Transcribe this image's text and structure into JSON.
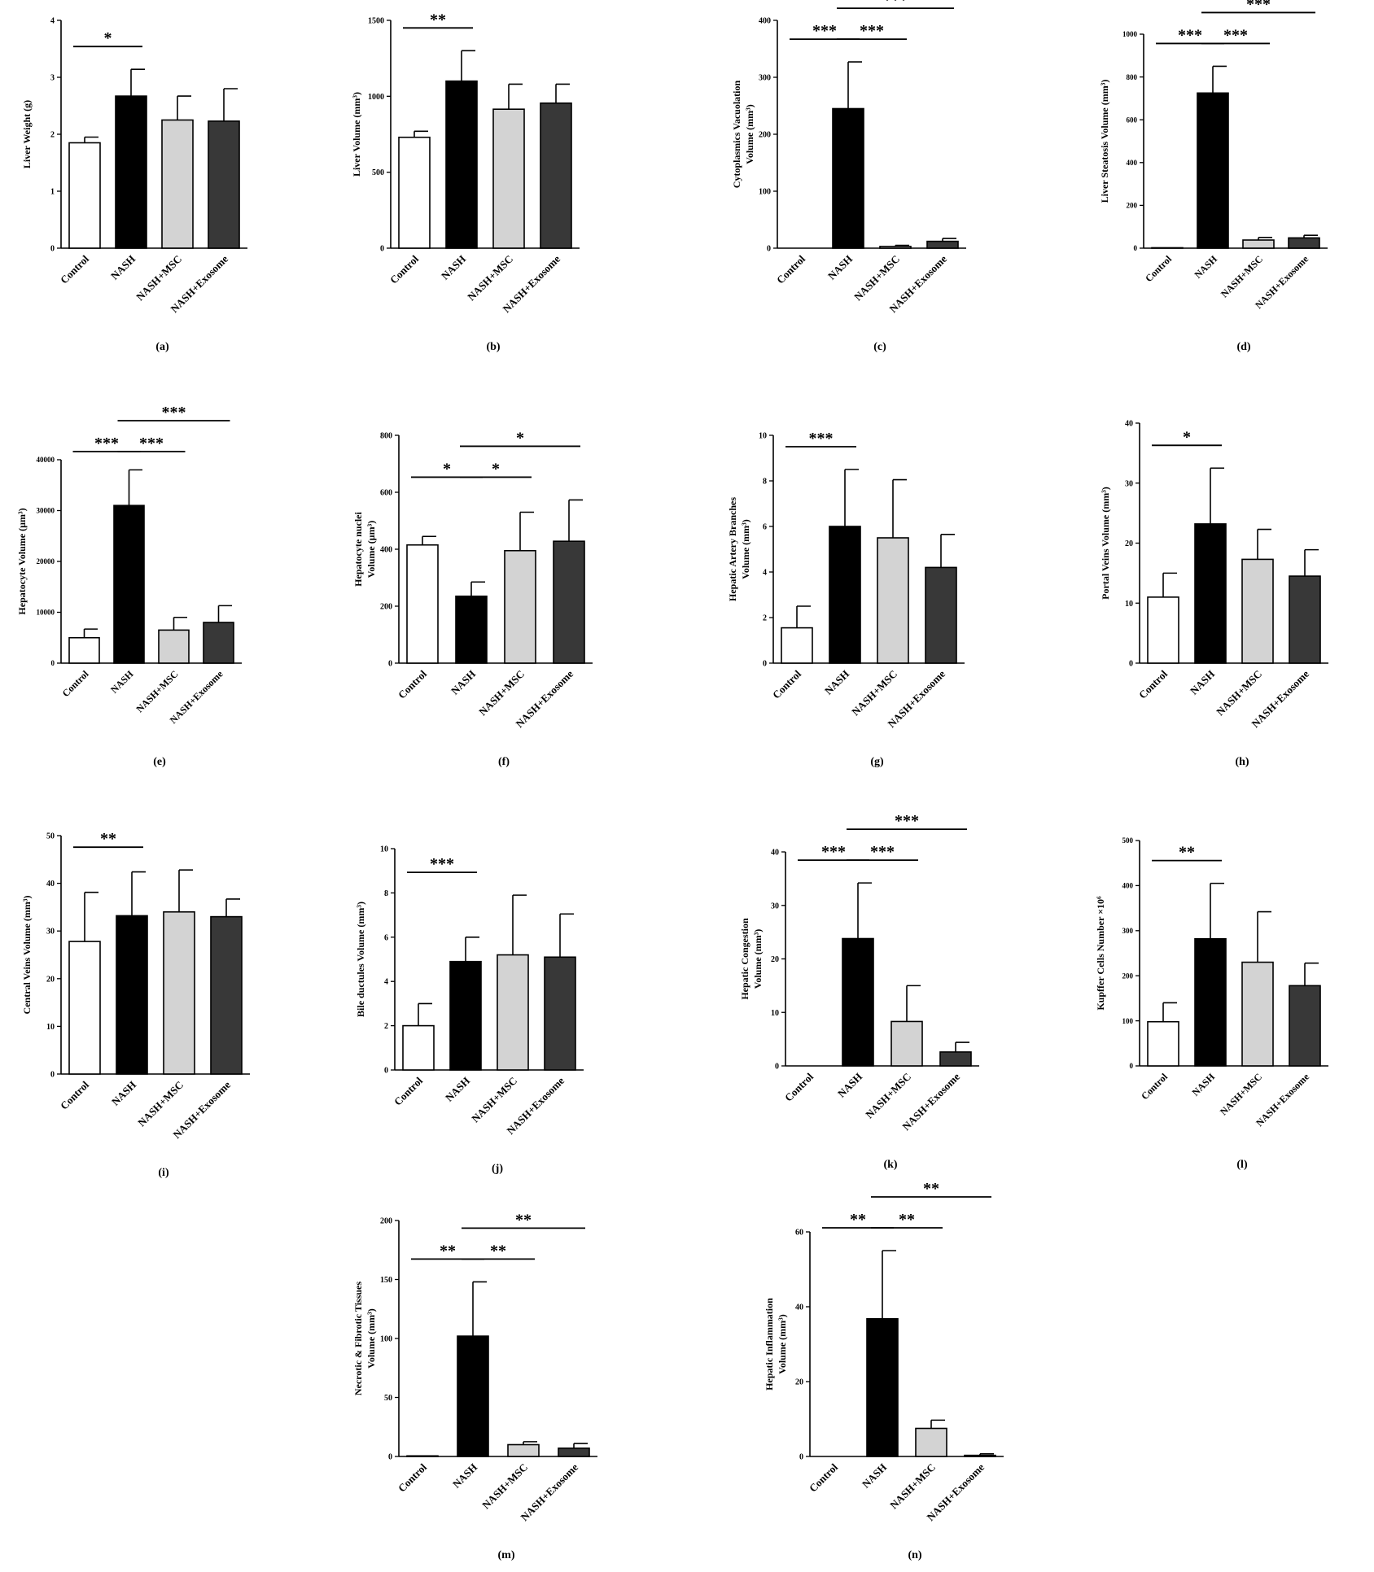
{
  "groups": [
    "Control",
    "NASH",
    "NASH+MSC",
    "NASH+Exosome"
  ],
  "colors": {
    "Control": "#ffffff",
    "NASH": "#000000",
    "NASH+MSC": "#d3d3d3",
    "NASH+Exosome": "#383838"
  },
  "chart_data": [
    {
      "type": "bar",
      "panel": "(a)",
      "ylabel": [
        "Liver Weight (g)"
      ],
      "ylim": [
        0,
        4
      ],
      "yticks": [
        0,
        1,
        2,
        3,
        4
      ],
      "categories": [
        "Control",
        "NASH",
        "NASH+MSC",
        "NASH+Exosome"
      ],
      "values": [
        1.85,
        2.67,
        2.25,
        2.23
      ],
      "errors": [
        0.1,
        0.47,
        0.42,
        0.57
      ],
      "significance": [
        {
          "from": 0,
          "to": 1,
          "label": "*"
        }
      ]
    },
    {
      "type": "bar",
      "panel": "(b)",
      "ylabel": [
        "Liver Volume (mm³)"
      ],
      "ylim": [
        0,
        1500
      ],
      "yticks": [
        0,
        500,
        1000,
        1500
      ],
      "categories": [
        "Control",
        "NASH",
        "NASH+MSC",
        "NASH+Exosome"
      ],
      "values": [
        730,
        1100,
        915,
        955
      ],
      "errors": [
        40,
        200,
        165,
        125
      ],
      "significance": [
        {
          "from": 0,
          "to": 1,
          "label": "**"
        }
      ]
    },
    {
      "type": "bar",
      "panel": "(c)",
      "ylabel": [
        "Cytoplasmics Vacuolation",
        "Volume (mm³)"
      ],
      "ylim": [
        0,
        400
      ],
      "yticks": [
        0,
        100,
        200,
        300,
        400
      ],
      "categories": [
        "Control",
        "NASH",
        "NASH+MSC",
        "NASH+Exosome"
      ],
      "values": [
        0,
        245,
        3,
        12
      ],
      "errors": [
        0,
        82,
        2,
        5
      ],
      "significance": [
        {
          "from": 0,
          "to": 1,
          "label": "***"
        },
        {
          "from": 1,
          "to": 2,
          "label": "***"
        },
        {
          "from": 1,
          "to": 3,
          "label": "***"
        }
      ]
    },
    {
      "type": "bar",
      "panel": "(d)",
      "ylabel": [
        "Liver Steatosis Volume (mm³)"
      ],
      "ylim": [
        0,
        1000
      ],
      "yticks": [
        0,
        200,
        400,
        600,
        800,
        1000
      ],
      "categories": [
        "Control",
        "NASH",
        "NASH+MSC",
        "NASH+Exosome"
      ],
      "values": [
        2,
        725,
        38,
        48
      ],
      "errors": [
        0,
        125,
        12,
        12
      ],
      "significance": [
        {
          "from": 0,
          "to": 1,
          "label": "***"
        },
        {
          "from": 1,
          "to": 2,
          "label": "***"
        },
        {
          "from": 1,
          "to": 3,
          "label": "***"
        }
      ]
    },
    {
      "type": "bar",
      "panel": "(e)",
      "ylabel": [
        "Hepatocyte Volume (µm³)"
      ],
      "ylim": [
        0,
        40000
      ],
      "yticks": [
        0,
        10000,
        20000,
        30000,
        40000
      ],
      "categories": [
        "Control",
        "NASH",
        "NASH+MSC",
        "NASH+Exosome"
      ],
      "values": [
        5000,
        31000,
        6500,
        8000
      ],
      "errors": [
        1700,
        7000,
        2500,
        3300
      ],
      "significance": [
        {
          "from": 0,
          "to": 1,
          "label": "***"
        },
        {
          "from": 1,
          "to": 2,
          "label": "***"
        },
        {
          "from": 1,
          "to": 3,
          "label": "***"
        }
      ]
    },
    {
      "type": "bar",
      "panel": "(f)",
      "ylabel": [
        "Hepatocyte nuclei",
        "Volume (µm³)"
      ],
      "ylim": [
        0,
        800
      ],
      "yticks": [
        0,
        200,
        400,
        600,
        800
      ],
      "categories": [
        "Control",
        "NASH",
        "NASH+MSC",
        "NASH+Exosome"
      ],
      "values": [
        415,
        235,
        395,
        428
      ],
      "errors": [
        30,
        50,
        135,
        145
      ],
      "significance": [
        {
          "from": 0,
          "to": 1,
          "label": "*"
        },
        {
          "from": 1,
          "to": 2,
          "label": "*"
        },
        {
          "from": 1,
          "to": 3,
          "label": "*"
        }
      ]
    },
    {
      "type": "bar",
      "panel": "(g)",
      "ylabel": [
        "Hepatic Artery Branches",
        "Volume (mm³)"
      ],
      "ylim": [
        0,
        10
      ],
      "yticks": [
        0,
        2,
        4,
        6,
        8,
        10
      ],
      "categories": [
        "Control",
        "NASH",
        "NASH+MSC",
        "NASH+Exosome"
      ],
      "values": [
        1.55,
        6.0,
        5.5,
        4.2
      ],
      "errors": [
        0.95,
        2.5,
        2.55,
        1.45
      ],
      "significance": [
        {
          "from": 0,
          "to": 1,
          "label": "***"
        }
      ]
    },
    {
      "type": "bar",
      "panel": "(h)",
      "ylabel": [
        "Portal Veins Volume (mm³)"
      ],
      "ylim": [
        0,
        40
      ],
      "yticks": [
        0,
        10,
        20,
        30,
        40
      ],
      "categories": [
        "Control",
        "NASH",
        "NASH+MSC",
        "NASH+Exosome"
      ],
      "values": [
        11,
        23.2,
        17.3,
        14.5
      ],
      "errors": [
        4,
        9.3,
        5,
        4.4
      ],
      "significance": [
        {
          "from": 0,
          "to": 1,
          "label": "*"
        }
      ]
    },
    {
      "type": "bar",
      "panel": "(i)",
      "ylabel": [
        "Central Veins Volume (mm³)"
      ],
      "ylim": [
        0,
        50
      ],
      "yticks": [
        0,
        10,
        20,
        30,
        40,
        50
      ],
      "categories": [
        "Control",
        "NASH",
        "NASH+MSC",
        "NASH+Exosome"
      ],
      "values": [
        27.8,
        33.2,
        34,
        33
      ],
      "errors": [
        10.3,
        9.2,
        8.8,
        3.7
      ],
      "significance": [
        {
          "from": 0,
          "to": 1,
          "label": "**"
        }
      ]
    },
    {
      "type": "bar",
      "panel": "(j)",
      "ylabel": [
        "Bile ductules Volume (mm³)"
      ],
      "ylim": [
        0,
        10
      ],
      "yticks": [
        0,
        2,
        4,
        6,
        8,
        10
      ],
      "categories": [
        "Control",
        "NASH",
        "NASH+MSC",
        "NASH+Exosome"
      ],
      "values": [
        2.0,
        4.9,
        5.2,
        5.1
      ],
      "errors": [
        1.0,
        1.1,
        2.7,
        1.95
      ],
      "significance": [
        {
          "from": 0,
          "to": 1,
          "label": "***"
        }
      ]
    },
    {
      "type": "bar",
      "panel": "(k)",
      "ylabel": [
        "Hepatic Congestion",
        "Volume (mm³)"
      ],
      "ylim": [
        0,
        40
      ],
      "yticks": [
        0,
        10,
        20,
        30,
        40
      ],
      "categories": [
        "Control",
        "NASH",
        "NASH+MSC",
        "NASH+Exosome"
      ],
      "values": [
        0,
        23.8,
        8.3,
        2.6
      ],
      "errors": [
        0,
        10.4,
        6.7,
        1.8
      ],
      "significance": [
        {
          "from": 0,
          "to": 1,
          "label": "***"
        },
        {
          "from": 1,
          "to": 2,
          "label": "***"
        },
        {
          "from": 1,
          "to": 3,
          "label": "***"
        }
      ]
    },
    {
      "type": "bar",
      "panel": "(l)",
      "ylabel": [
        "Kupffer Cells Number ×10⁶"
      ],
      "ylim": [
        0,
        500
      ],
      "yticks": [
        0,
        100,
        200,
        300,
        400,
        500
      ],
      "categories": [
        "Control",
        "NASH",
        "NASH+MSC",
        "NASH+Exosome"
      ],
      "values": [
        98,
        282,
        230,
        178
      ],
      "errors": [
        42,
        123,
        112,
        50
      ],
      "significance": [
        {
          "from": 0,
          "to": 1,
          "label": "**"
        }
      ]
    },
    {
      "type": "bar",
      "panel": "(m)",
      "ylabel": [
        "Necrotic & Fibrotic Tissues",
        "Volume (mm³)"
      ],
      "ylim": [
        0,
        200
      ],
      "yticks": [
        0,
        50,
        100,
        150,
        200
      ],
      "categories": [
        "Control",
        "NASH",
        "NASH+MSC",
        "NASH+Exosome"
      ],
      "values": [
        0.5,
        102,
        10,
        7
      ],
      "errors": [
        0,
        46,
        2.5,
        4
      ],
      "significance": [
        {
          "from": 0,
          "to": 1,
          "label": "**"
        },
        {
          "from": 1,
          "to": 2,
          "label": "**"
        },
        {
          "from": 1,
          "to": 3,
          "label": "**"
        }
      ]
    },
    {
      "type": "bar",
      "panel": "(n)",
      "ylabel": [
        "Hepatic Inflammation",
        "Volume (mm³)"
      ],
      "ylim": [
        0,
        60
      ],
      "yticks": [
        0,
        20,
        40,
        60
      ],
      "categories": [
        "Control",
        "NASH",
        "NASH+MSC",
        "NASH+Exosome"
      ],
      "values": [
        0,
        36.8,
        7.5,
        0.3
      ],
      "errors": [
        0,
        18.2,
        2.2,
        0.4
      ],
      "significance": [
        {
          "from": 0,
          "to": 1,
          "label": "**"
        },
        {
          "from": 1,
          "to": 2,
          "label": "**"
        },
        {
          "from": 1,
          "to": 3,
          "label": "**"
        }
      ]
    }
  ]
}
